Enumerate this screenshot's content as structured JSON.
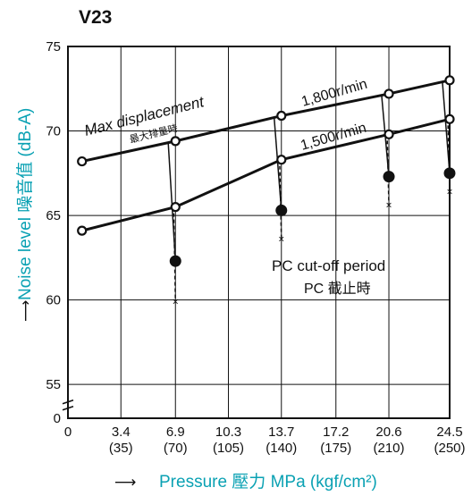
{
  "chart_data": {
    "type": "line",
    "title": "V23",
    "xlabel": "Pressure 壓力 MPa (kgf/cm²)",
    "ylabel": "Noise level 噪音值 (dB-A)",
    "xlim": [
      0,
      24.5
    ],
    "ylim": [
      53,
      75
    ],
    "x_ticks": [
      {
        "value": 0,
        "label": "0",
        "sub": ""
      },
      {
        "value": 3.4,
        "label": "3.4",
        "sub": "(35)"
      },
      {
        "value": 6.9,
        "label": "6.9",
        "sub": "(70)"
      },
      {
        "value": 10.3,
        "label": "10.3",
        "sub": "(105)"
      },
      {
        "value": 13.7,
        "label": "13.7",
        "sub": "(140)"
      },
      {
        "value": 17.2,
        "label": "17.2",
        "sub": "(175)"
      },
      {
        "value": 20.6,
        "label": "20.6",
        "sub": "(210)"
      },
      {
        "value": 24.5,
        "label": "24.5",
        "sub": "(250)"
      }
    ],
    "y_ticks": [
      {
        "value": 75,
        "label": "75"
      },
      {
        "value": 70,
        "label": "70"
      },
      {
        "value": 65,
        "label": "65"
      },
      {
        "value": 60,
        "label": "60"
      },
      {
        "value": 55,
        "label": "55"
      }
    ],
    "y_origin_label": "0",
    "grid": true,
    "series": [
      {
        "name": "1,800r/min",
        "x": [
          0.9,
          6.9,
          13.7,
          20.6,
          24.5
        ],
        "y": [
          68.2,
          69.4,
          70.9,
          72.2,
          73.0
        ]
      },
      {
        "name": "1,500r/min",
        "x": [
          0.9,
          6.9,
          13.7,
          20.6,
          24.5
        ],
        "y": [
          64.1,
          65.5,
          68.3,
          69.8,
          70.7
        ]
      }
    ],
    "pc_cutoff_points": {
      "x": [
        6.9,
        13.7,
        20.6,
        24.5
      ],
      "y": [
        62.3,
        65.3,
        67.3,
        67.5
      ]
    },
    "pc_cutoff_x_marks": {
      "x": [
        6.9,
        13.7,
        20.6,
        24.5
      ],
      "y": [
        59.9,
        63.6,
        65.6,
        66.4
      ]
    },
    "annotations": {
      "max_displacement": "Max displacement",
      "max_displacement_zh": "最大排量時",
      "pc_cutoff": "PC cut-off period",
      "pc_cutoff_zh": "PC 截止時",
      "label_1800": "1,800r/min",
      "label_1500": "1,500r/min"
    },
    "colors": {
      "axis_label": "#0aa1b3",
      "line": "#111111",
      "grid": "#111111"
    }
  }
}
